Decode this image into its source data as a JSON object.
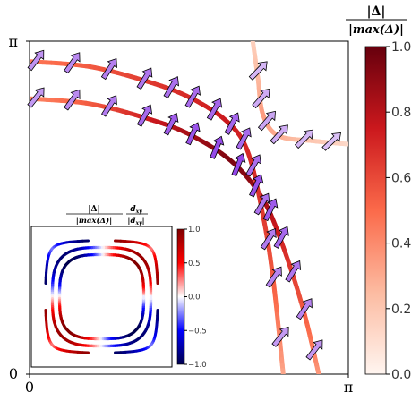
{
  "chart_data": [
    {
      "type": "line",
      "description_mark": "Fermi surface contours colored by normalized gap magnitude, with pseudospin arrows",
      "xlim": [
        0,
        3.14159
      ],
      "ylim": [
        0,
        3.14159
      ],
      "x_ticks": [
        "0",
        "π"
      ],
      "y_ticks": [
        "0",
        "π"
      ],
      "series": [
        {
          "values_encoding": "color = |Δ|/|max(Δ)|",
          "x": [
            0,
            0.6,
            1.2,
            1.6,
            2.0,
            2.3,
            2.5,
            2.7,
            2.85
          ],
          "y": [
            2.6,
            2.55,
            2.4,
            2.25,
            2.0,
            1.65,
            1.2,
            0.6,
            0.0
          ],
          "gap": [
            0.4,
            0.55,
            0.75,
            0.85,
            0.95,
            0.85,
            0.7,
            0.55,
            0.35
          ]
        },
        {
          "x": [
            0,
            0.6,
            1.2,
            1.6,
            1.95,
            2.15,
            2.3,
            2.4,
            2.5
          ],
          "y": [
            2.95,
            2.9,
            2.75,
            2.6,
            2.38,
            2.1,
            1.5,
            0.9,
            0.0
          ],
          "gap": [
            0.45,
            0.55,
            0.65,
            0.7,
            0.75,
            0.7,
            0.65,
            0.55,
            0.3
          ]
        },
        {
          "x": [
            2.2,
            2.25,
            2.3,
            2.45,
            2.8,
            3.14
          ],
          "y": [
            3.14,
            2.8,
            2.45,
            2.25,
            2.2,
            2.17
          ],
          "gap": [
            0.15,
            0.25,
            0.35,
            0.3,
            0.2,
            0.12
          ]
        }
      ],
      "colorbar": {
        "label": "|Δ| / |max(Δ)|",
        "ticks": [
          0.0,
          0.2,
          0.4,
          0.6,
          0.8,
          1.0
        ],
        "range": [
          0.0,
          1.0
        ]
      }
    },
    {
      "type": "line",
      "inset": true,
      "values_encoding": "color = (|Δ|/|max(Δ)|) · (d_xy/|d_xy|)",
      "colorbar": {
        "ticks": [
          -1.0,
          -0.5,
          0.0,
          0.5,
          1.0
        ],
        "range": [
          -1.0,
          1.0
        ]
      }
    }
  ],
  "labels": {
    "main_colorbar_numer": "|Δ|",
    "main_colorbar_denom": "|max(Δ)|",
    "inset_title_numer_1": "|Δ|",
    "inset_title_denom_1": "|max(Δ)|",
    "inset_title_numer_2": "d",
    "inset_title_sub_2": "xy",
    "inset_title_denom_2": "|d",
    "inset_title_denom_sub_2": "xy",
    "inset_title_denom_end_2": "|",
    "x_tick_0": "0",
    "x_tick_pi": "π",
    "y_tick_0": "0",
    "y_tick_pi": "π",
    "cb_tick_0": "0.0",
    "cb_tick_1": "0.2",
    "cb_tick_2": "0.4",
    "cb_tick_3": "0.6",
    "cb_tick_4": "0.8",
    "cb_tick_5": "1.0",
    "icb_tick_0": "−1.0",
    "icb_tick_1": "−0.5",
    "icb_tick_2": "0.0",
    "icb_tick_3": "0.5",
    "icb_tick_4": "1.0"
  }
}
